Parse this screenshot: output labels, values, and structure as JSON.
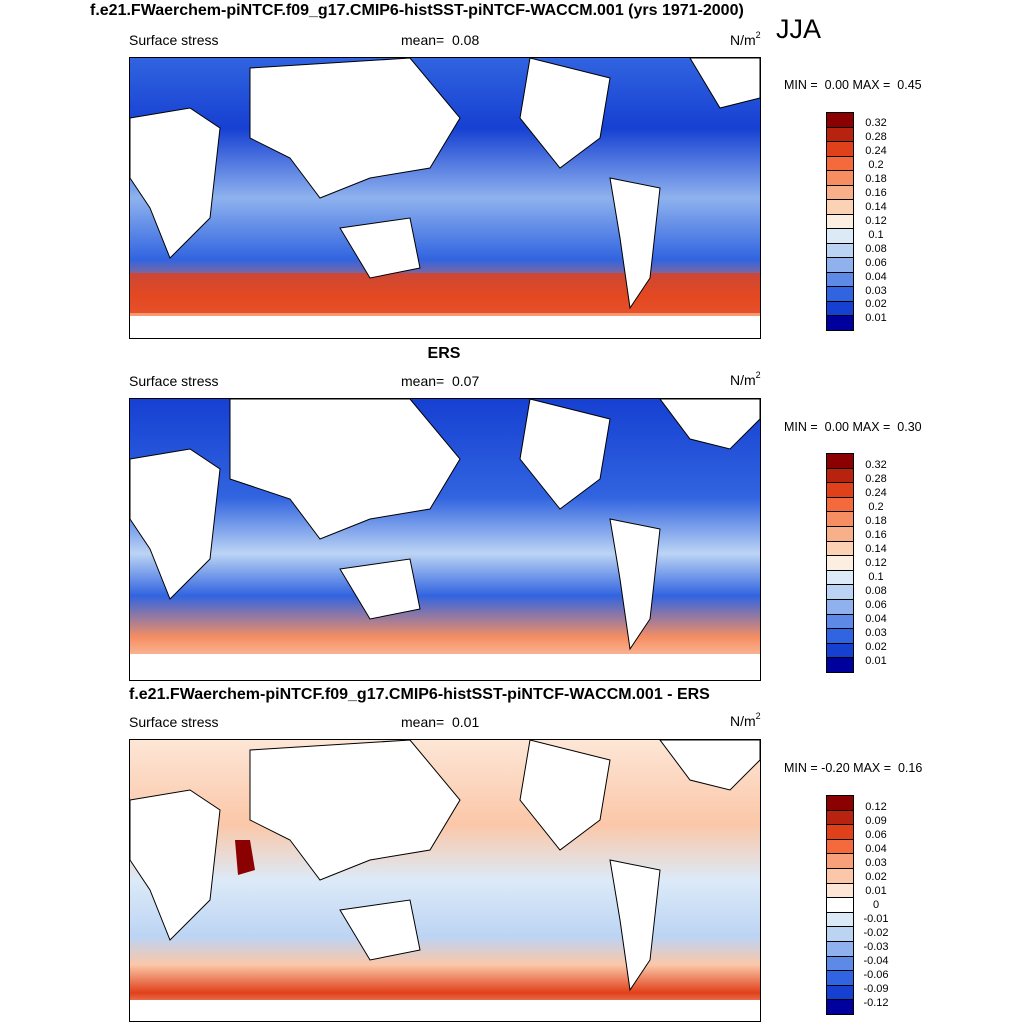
{
  "main_title": "f.e21.FWaerchem-piNTCF.f09_g17.CMIP6-histSST-piNTCF-WACCM.001 (yrs 1971-2000)",
  "season": "JJA",
  "panels": [
    {
      "id": "model",
      "title": "",
      "variable": "Surface stress",
      "mean_label": "mean=",
      "mean_value": "0.08",
      "units": "N/m",
      "units_exp": "2",
      "min_label": "MIN =",
      "min_value": "0.00",
      "max_label": "MAX =",
      "max_value": "0.45",
      "levels": [
        "0.32",
        "0.28",
        "0.24",
        "0.2",
        "0.18",
        "0.16",
        "0.14",
        "0.12",
        "0.1",
        "0.08",
        "0.06",
        "0.04",
        "0.03",
        "0.02",
        "0.01"
      ]
    },
    {
      "id": "obs",
      "title": "ERS",
      "variable": "Surface stress",
      "mean_label": "mean=",
      "mean_value": "0.07",
      "units": "N/m",
      "units_exp": "2",
      "min_label": "MIN =",
      "min_value": "0.00",
      "max_label": "MAX =",
      "max_value": "0.30",
      "levels": [
        "0.32",
        "0.28",
        "0.24",
        "0.2",
        "0.18",
        "0.16",
        "0.14",
        "0.12",
        "0.1",
        "0.08",
        "0.06",
        "0.04",
        "0.03",
        "0.02",
        "0.01"
      ]
    },
    {
      "id": "diff",
      "title": "f.e21.FWaerchem-piNTCF.f09_g17.CMIP6-histSST-piNTCF-WACCM.001 - ERS",
      "variable": "Surface stress",
      "mean_label": "mean=",
      "mean_value": "0.01",
      "units": "N/m",
      "units_exp": "2",
      "min_label": "MIN =",
      "min_value": "-0.20",
      "max_label": "MAX =",
      "max_value": "0.16",
      "levels": [
        "0.12",
        "0.09",
        "0.06",
        "0.04",
        "0.03",
        "0.02",
        "0.01",
        "0",
        "-0.01",
        "-0.02",
        "-0.03",
        "-0.04",
        "-0.06",
        "-0.09",
        "-0.12"
      ]
    }
  ],
  "colors": {
    "abs_scale": [
      "#8b0000",
      "#b8230f",
      "#e0401a",
      "#f56a3c",
      "#f78e62",
      "#f8b08a",
      "#fbd2b4",
      "#fdeee2",
      "#dceaf8",
      "#bcd4f4",
      "#8fb2ee",
      "#5c8ae6",
      "#3164e0",
      "#1640d2",
      "#00009c"
    ],
    "diff_scale": [
      "#8b0000",
      "#b8230f",
      "#e0401a",
      "#f56a3c",
      "#f8a07a",
      "#fbc7a8",
      "#fde6d6",
      "#ffffff",
      "#dceaf8",
      "#bcd4f4",
      "#8fb2ee",
      "#5c8ae6",
      "#3164e0",
      "#1640d2",
      "#00009c"
    ]
  }
}
